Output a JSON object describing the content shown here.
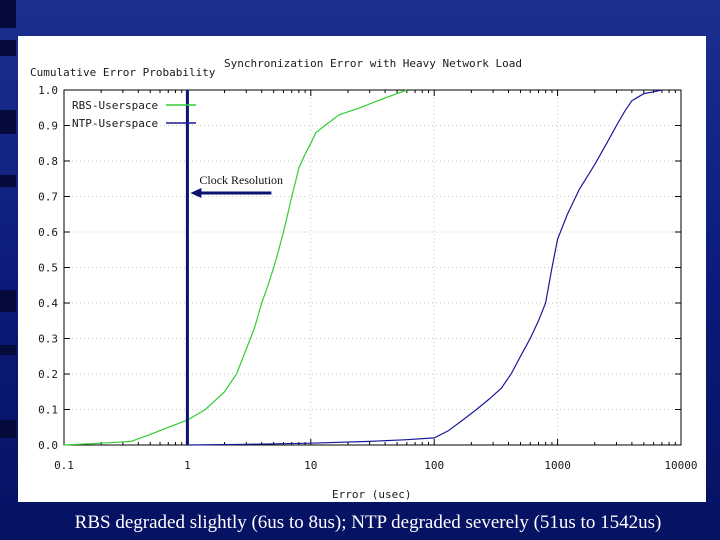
{
  "chart_data": {
    "type": "line",
    "title": "Synchronization Error with Heavy Network Load",
    "xlabel": "Error (usec)",
    "ylabel": "Cumulative Error Probability",
    "x_scale": "log",
    "xlim": [
      0.1,
      10000
    ],
    "ylim": [
      0,
      1
    ],
    "x_ticks": [
      "0.1",
      "1",
      "10",
      "100",
      "1000",
      "10000"
    ],
    "y_ticks": [
      "0.0",
      "0.1",
      "0.2",
      "0.3",
      "0.4",
      "0.5",
      "0.6",
      "0.7",
      "0.8",
      "0.9",
      "1.0"
    ],
    "grid": true,
    "legend_position": "top-left",
    "series": [
      {
        "name": "RBS-Userspace",
        "color": "#33cc33",
        "x": [
          0.1,
          0.2,
          0.35,
          0.5,
          0.7,
          1.0,
          1.4,
          2.0,
          2.5,
          3.0,
          3.5,
          4.0,
          4.5,
          5.0,
          5.5,
          6.0,
          6.5,
          7.0,
          7.5,
          8.0,
          9.0,
          10.0,
          11.0,
          13.0,
          17.0,
          25.0,
          35.0,
          50.0,
          60.0
        ],
        "y": [
          0.0,
          0.005,
          0.01,
          0.03,
          0.05,
          0.07,
          0.1,
          0.15,
          0.2,
          0.27,
          0.33,
          0.4,
          0.45,
          0.5,
          0.55,
          0.6,
          0.65,
          0.7,
          0.74,
          0.78,
          0.82,
          0.85,
          0.88,
          0.9,
          0.93,
          0.95,
          0.97,
          0.99,
          1.0
        ]
      },
      {
        "name": "NTP-Userspace",
        "color": "#1a1a99",
        "x": [
          1.0,
          3.0,
          10.0,
          30.0,
          60.0,
          100.0,
          130.0,
          170.0,
          220.0,
          280.0,
          350.0,
          420.0,
          500.0,
          600.0,
          700.0,
          800.0,
          900.0,
          1000.0,
          1200.0,
          1500.0,
          2000.0,
          2500.0,
          3000.0,
          3500.0,
          4000.0,
          5000.0,
          6000.0,
          7000.0
        ],
        "y": [
          0.0,
          0.002,
          0.005,
          0.01,
          0.015,
          0.02,
          0.04,
          0.07,
          0.1,
          0.13,
          0.16,
          0.2,
          0.25,
          0.3,
          0.35,
          0.4,
          0.5,
          0.58,
          0.65,
          0.72,
          0.79,
          0.85,
          0.9,
          0.94,
          0.97,
          0.99,
          0.995,
          1.0
        ]
      }
    ],
    "annotations": [
      {
        "text": "Clock Resolution",
        "x": 1.0
      }
    ]
  },
  "caption": "RBS degraded slightly (6us to 8us); NTP degraded severely (51us to 1542us)"
}
